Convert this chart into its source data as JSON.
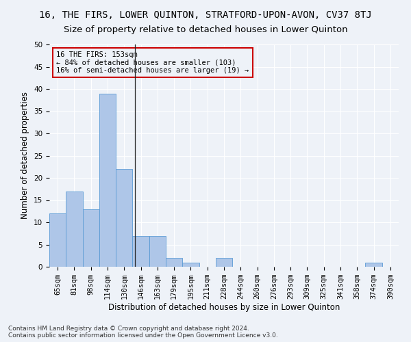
{
  "title": "16, THE FIRS, LOWER QUINTON, STRATFORD-UPON-AVON, CV37 8TJ",
  "subtitle": "Size of property relative to detached houses in Lower Quinton",
  "xlabel": "Distribution of detached houses by size in Lower Quinton",
  "ylabel": "Number of detached properties",
  "bar_labels": [
    "65sqm",
    "81sqm",
    "98sqm",
    "114sqm",
    "130sqm",
    "146sqm",
    "163sqm",
    "179sqm",
    "195sqm",
    "211sqm",
    "228sqm",
    "244sqm",
    "260sqm",
    "276sqm",
    "293sqm",
    "309sqm",
    "325sqm",
    "341sqm",
    "358sqm",
    "374sqm",
    "390sqm"
  ],
  "bar_values": [
    12,
    17,
    13,
    39,
    22,
    7,
    7,
    2,
    1,
    0,
    2,
    0,
    0,
    0,
    0,
    0,
    0,
    0,
    0,
    1,
    0
  ],
  "bar_color": "#aec6e8",
  "bar_edge_color": "#5b9bd5",
  "annotation_line1": "16 THE FIRS: 153sqm",
  "annotation_line2": "← 84% of detached houses are smaller (103)",
  "annotation_line3": "16% of semi-detached houses are larger (19) →",
  "annotation_box_color": "#cc0000",
  "ylim": [
    0,
    50
  ],
  "yticks": [
    0,
    5,
    10,
    15,
    20,
    25,
    30,
    35,
    40,
    45,
    50
  ],
  "property_line_x": 4.65,
  "footer": "Contains HM Land Registry data © Crown copyright and database right 2024.\nContains public sector information licensed under the Open Government Licence v3.0.",
  "bg_color": "#eef2f8",
  "grid_color": "#ffffff",
  "title_fontsize": 10,
  "subtitle_fontsize": 9.5,
  "axis_label_fontsize": 8.5,
  "tick_fontsize": 7.5,
  "annotation_fontsize": 7.5,
  "footer_fontsize": 6.5
}
